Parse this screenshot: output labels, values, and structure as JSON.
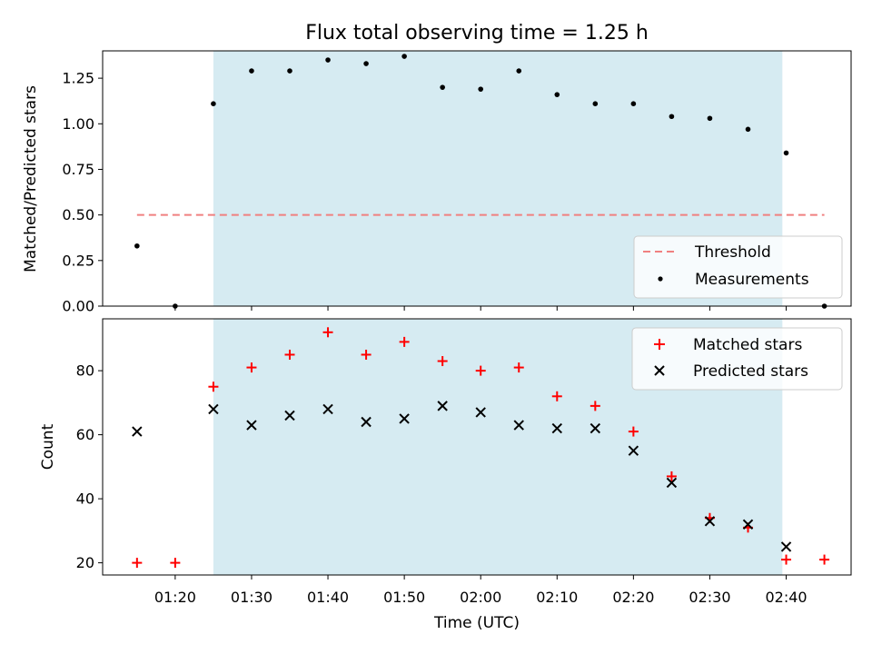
{
  "chart_data": [
    {
      "type": "scatter",
      "title": "Flux total observing time = 1.25 h",
      "xlabel": "",
      "ylabel": "Matched/Predicted stars",
      "xlim": [
        "01:10:30",
        "02:48:30"
      ],
      "ylim": [
        0,
        1.4
      ],
      "yticks": [
        0.0,
        0.25,
        0.5,
        0.75,
        1.0,
        1.25
      ],
      "ytick_labels": [
        "0.00",
        "0.25",
        "0.50",
        "0.75",
        "1.00",
        "1.25"
      ],
      "shaded_span": [
        "01:25",
        "02:39:30"
      ],
      "shade_color": "#add8e6",
      "threshold": {
        "name": "Threshold",
        "value": 0.5,
        "x_range": [
          "01:15",
          "02:45"
        ],
        "color": "#f08080"
      },
      "series": [
        {
          "name": "Measurements",
          "color": "#000000",
          "x": [
            "01:15",
            "01:20",
            "01:25",
            "01:30",
            "01:35",
            "01:40",
            "01:45",
            "01:50",
            "01:55",
            "02:00",
            "02:05",
            "02:10",
            "02:15",
            "02:20",
            "02:25",
            "02:30",
            "02:35",
            "02:40",
            "02:45"
          ],
          "values": [
            0.33,
            0.0,
            1.11,
            1.29,
            1.29,
            1.35,
            1.33,
            1.37,
            1.2,
            1.19,
            1.29,
            1.16,
            1.11,
            1.11,
            1.04,
            1.03,
            0.97,
            0.84,
            0.0
          ]
        }
      ],
      "legend": {
        "location": "lower-right",
        "entries": [
          "Threshold",
          "Measurements"
        ]
      }
    },
    {
      "type": "scatter",
      "title": "",
      "xlabel": "Time (UTC)",
      "ylabel": "Count",
      "xlim": [
        "01:10:30",
        "02:48:30"
      ],
      "ylim": [
        16.2,
        96.2
      ],
      "xticks": [
        "01:20",
        "01:30",
        "01:40",
        "01:50",
        "02:00",
        "02:10",
        "02:20",
        "02:30",
        "02:40"
      ],
      "yticks": [
        20,
        40,
        60,
        80
      ],
      "ytick_labels": [
        "20",
        "40",
        "60",
        "80"
      ],
      "shaded_span": [
        "01:25",
        "02:39:30"
      ],
      "shade_color": "#add8e6",
      "series": [
        {
          "name": "Matched stars",
          "marker": "plus",
          "color": "#ff0000",
          "x": [
            "01:15",
            "01:20",
            "01:25",
            "01:30",
            "01:35",
            "01:40",
            "01:45",
            "01:50",
            "01:55",
            "02:00",
            "02:05",
            "02:10",
            "02:15",
            "02:20",
            "02:25",
            "02:30",
            "02:35",
            "02:40",
            "02:45"
          ],
          "values": [
            20,
            20,
            75,
            81,
            85,
            92,
            85,
            89,
            83,
            80,
            81,
            72,
            69,
            61,
            47,
            34,
            31,
            21,
            21
          ]
        },
        {
          "name": "Predicted stars",
          "marker": "x",
          "color": "#000000",
          "x": [
            "01:15",
            "01:25",
            "01:30",
            "01:35",
            "01:40",
            "01:45",
            "01:50",
            "01:55",
            "02:00",
            "02:05",
            "02:10",
            "02:15",
            "02:20",
            "02:25",
            "02:30",
            "02:35",
            "02:40"
          ],
          "values": [
            61,
            68,
            63,
            66,
            68,
            64,
            65,
            69,
            67,
            63,
            62,
            62,
            55,
            45,
            33,
            32,
            25
          ]
        }
      ],
      "legend": {
        "location": "upper-right",
        "entries": [
          "Matched stars",
          "Predicted stars"
        ]
      }
    }
  ]
}
